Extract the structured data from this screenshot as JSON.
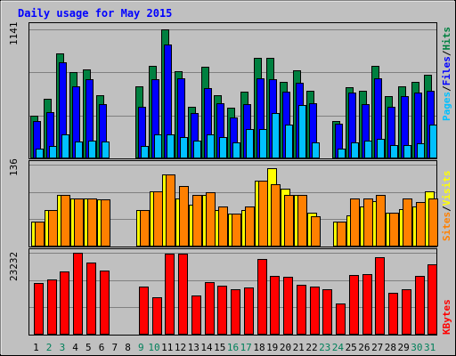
{
  "chart_data": {
    "type": "bar",
    "title": "Daily usage for May 2015",
    "days": [
      "1",
      "2",
      "3",
      "4",
      "5",
      "6",
      "7",
      "8",
      "9",
      "10",
      "11",
      "12",
      "13",
      "14",
      "15",
      "16",
      "17",
      "18",
      "19",
      "20",
      "21",
      "22",
      "23",
      "24",
      "25",
      "26",
      "27",
      "28",
      "29",
      "30",
      "31"
    ],
    "weekend_days": [
      "2",
      "3",
      "9",
      "10",
      "16",
      "17",
      "23",
      "24",
      "30",
      "31"
    ],
    "panels": [
      {
        "name": "hits-files-pages",
        "ymax": 1141,
        "ymax_label": "1141",
        "right_label": [
          "Pages",
          "/",
          "Files",
          "/",
          "Hits"
        ],
        "series": [
          {
            "name": "Hits",
            "color": "#008040",
            "values": [
              380,
              530,
              930,
              760,
              790,
              560,
              0,
              0,
              640,
              820,
              1141,
              770,
              460,
              810,
              560,
              450,
              590,
              890,
              890,
              680,
              780,
              600,
              0,
              330,
              630,
              600,
              820,
              550,
              640,
              680,
              740
            ]
          },
          {
            "name": "Files",
            "color": "#0000ff",
            "values": [
              330,
              410,
              850,
              640,
              700,
              480,
              0,
              0,
              460,
              700,
              1010,
              710,
              400,
              620,
              490,
              360,
              480,
              710,
              700,
              590,
              670,
              490,
              0,
              310,
              580,
              480,
              710,
              460,
              550,
              580,
              600
            ]
          },
          {
            "name": "Pages",
            "color": "#00c0ff",
            "values": [
              90,
              110,
              210,
              150,
              160,
              150,
              0,
              0,
              110,
              210,
              210,
              190,
              160,
              210,
              190,
              140,
              260,
              260,
              400,
              300,
              470,
              140,
              0,
              90,
              140,
              160,
              170,
              120,
              120,
              130,
              300
            ]
          }
        ]
      },
      {
        "name": "visits-sites",
        "ymax": 136,
        "ymax_label": "136",
        "right_label": [
          "Sites",
          "/",
          "Visits"
        ],
        "series": [
          {
            "name": "Visits",
            "color": "#ffff00",
            "values": [
              42,
              60,
              86,
              80,
              80,
              78,
              0,
              0,
              60,
              92,
              120,
              80,
              70,
              86,
              60,
              54,
              60,
              110,
              130,
              96,
              86,
              56,
              0,
              42,
              52,
              66,
              75,
              56,
              62,
              66,
              92
            ]
          },
          {
            "name": "Sites",
            "color": "#ff8000",
            "values": [
              42,
              60,
              86,
              80,
              80,
              78,
              0,
              0,
              60,
              92,
              120,
              100,
              86,
              90,
              66,
              54,
              66,
              110,
              104,
              86,
              86,
              50,
              0,
              42,
              80,
              80,
              86,
              56,
              80,
              74,
              80
            ]
          }
        ]
      },
      {
        "name": "kbytes",
        "ymax": 23232,
        "ymax_label": "23232",
        "right_label": [
          "KBytes"
        ],
        "series": [
          {
            "name": "KBytes",
            "color": "#ff0000",
            "values": [
              14600,
              15700,
              17900,
              23232,
              20500,
              18300,
              0,
              0,
              13600,
              10500,
              23000,
              23000,
              11000,
              14900,
              13900,
              12800,
              13500,
              21500,
              16700,
              16400,
              14100,
              13700,
              13000,
              8800,
              16800,
              17200,
              21900,
              11800,
              12900,
              16700,
              19900
            ]
          }
        ]
      }
    ]
  }
}
